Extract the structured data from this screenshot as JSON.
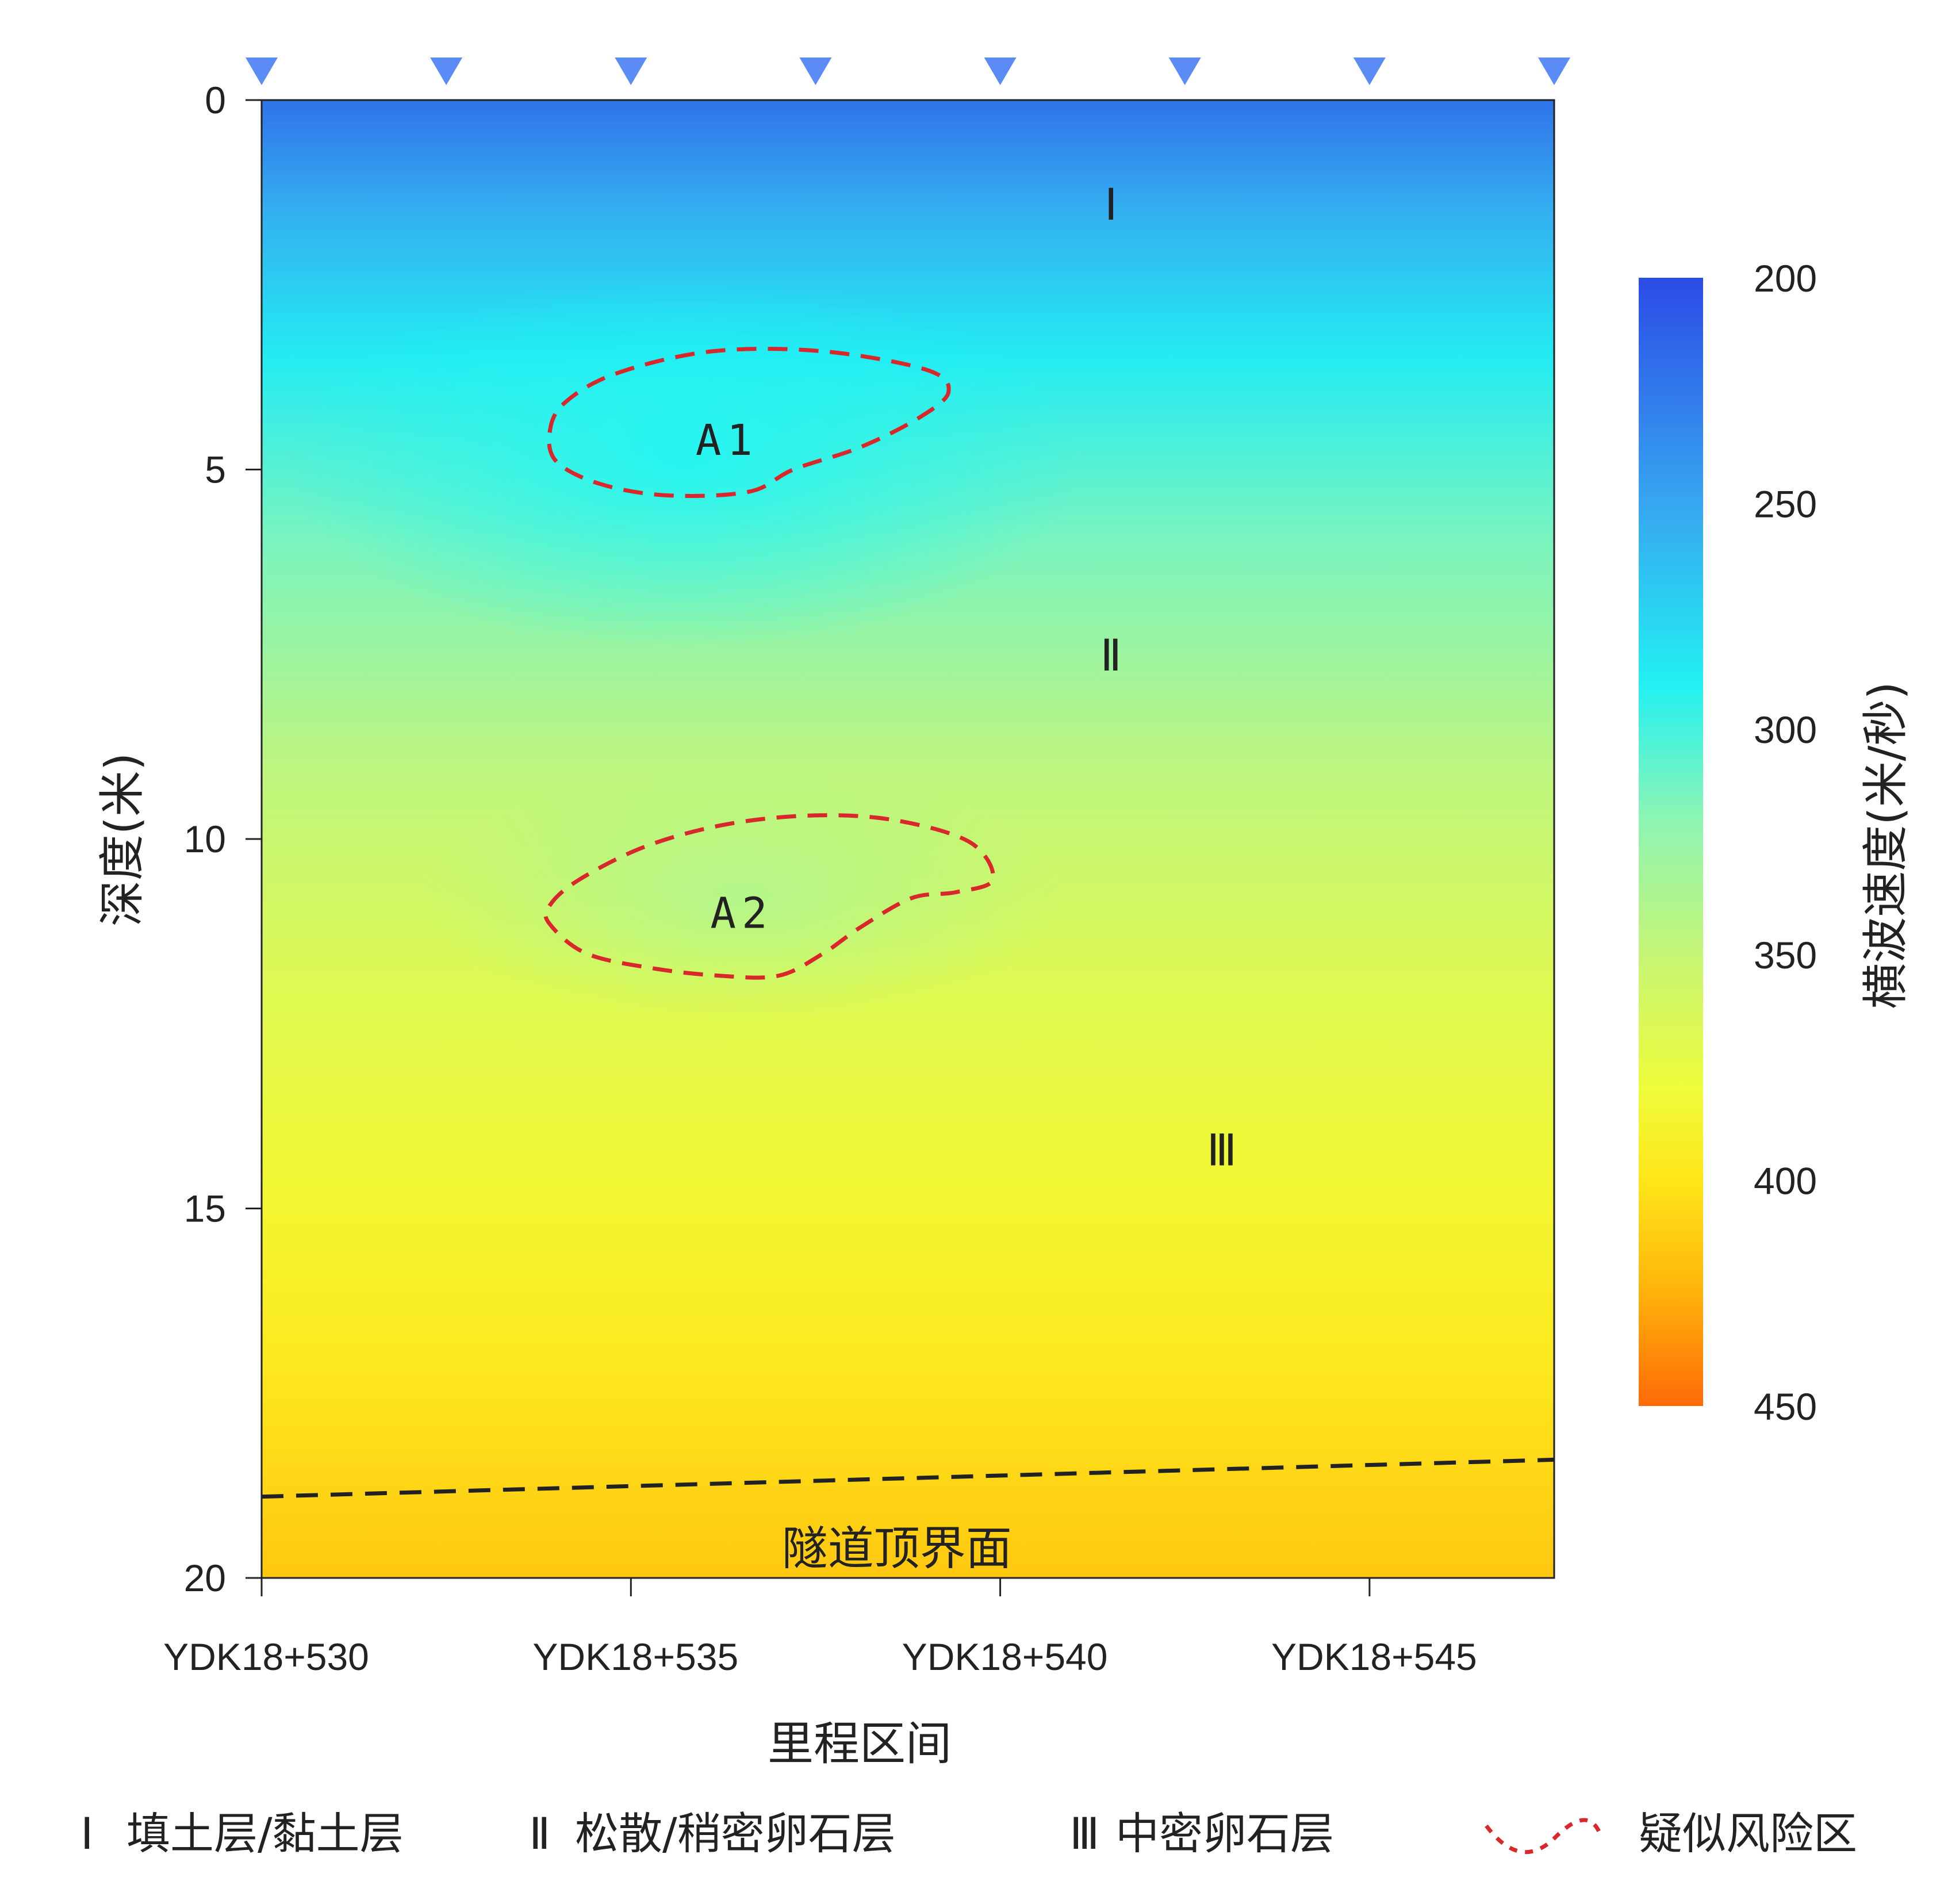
{
  "chart_data": {
    "type": "heatmap",
    "xlabel": "里程区间",
    "ylabel": "深度(米)",
    "colorbar_label": "横波速度(米/秒)",
    "x_tick_labels": [
      "YDK18+530",
      "YDK18+535",
      "YDK18+540",
      "YDK18+545"
    ],
    "x_ticks": [
      530,
      535,
      540,
      545
    ],
    "xlim": [
      530,
      547.5
    ],
    "y_ticks": [
      0,
      5,
      10,
      15,
      20
    ],
    "ylim": [
      0,
      20
    ],
    "y_inverted": true,
    "colorbar_ticks": [
      200,
      250,
      300,
      350,
      400,
      450
    ],
    "colorbar_range": [
      200,
      450
    ],
    "colorscale": [
      [
        200,
        "#2b4be6"
      ],
      [
        250,
        "#37a6f0"
      ],
      [
        290,
        "#22f0f2"
      ],
      [
        320,
        "#8df5b4"
      ],
      [
        350,
        "#c6f575"
      ],
      [
        380,
        "#eefc3a"
      ],
      [
        400,
        "#ffe61a"
      ],
      [
        425,
        "#ffb20a"
      ],
      [
        450,
        "#ff6a08"
      ]
    ],
    "velocity_profile": [
      {
        "depth": 0,
        "velocity": 222
      },
      {
        "depth": 1.5,
        "velocity": 255
      },
      {
        "depth": 3.5,
        "velocity": 288
      },
      {
        "depth": 6,
        "velocity": 315
      },
      {
        "depth": 9,
        "velocity": 345
      },
      {
        "depth": 12,
        "velocity": 368
      },
      {
        "depth": 14.8,
        "velocity": 385
      },
      {
        "depth": 17.2,
        "velocity": 398
      },
      {
        "depth": 20,
        "velocity": 415
      }
    ],
    "receivers_x": [
      530,
      532.5,
      535,
      537.5,
      540,
      542.5,
      545,
      547.5
    ],
    "layers": [
      {
        "label": "Ⅰ",
        "x": 541.5,
        "depth": 1.4
      },
      {
        "label": "Ⅱ",
        "x": 541.5,
        "depth": 7.5
      },
      {
        "label": "Ⅲ",
        "x": 543.0,
        "depth": 14.2
      }
    ],
    "anomalies": [
      {
        "label": "A1",
        "x": 536.3,
        "depth": 4.6,
        "outline": [
          [
            533.9,
            4.5
          ],
          [
            534.1,
            4.1
          ],
          [
            534.8,
            3.7
          ],
          [
            536.1,
            3.4
          ],
          [
            537.6,
            3.4
          ],
          [
            539,
            3.65
          ],
          [
            539.3,
            3.95
          ],
          [
            538.9,
            4.3
          ],
          [
            538.1,
            4.7
          ],
          [
            537.2,
            5.0
          ],
          [
            536.6,
            5.3
          ],
          [
            535.5,
            5.35
          ],
          [
            534.6,
            5.2
          ],
          [
            534,
            4.9
          ],
          [
            533.9,
            4.5
          ]
        ]
      },
      {
        "label": "A2",
        "x": 536.5,
        "depth": 11.0,
        "outline": [
          [
            533.9,
            10.9
          ],
          [
            534.3,
            10.55
          ],
          [
            535.2,
            10.1
          ],
          [
            536.3,
            9.8
          ],
          [
            537.5,
            9.68
          ],
          [
            538.6,
            9.75
          ],
          [
            539.6,
            10.05
          ],
          [
            539.9,
            10.55
          ],
          [
            539.4,
            10.72
          ],
          [
            538.8,
            10.8
          ],
          [
            538.1,
            11.2
          ],
          [
            537.6,
            11.55
          ],
          [
            537,
            11.85
          ],
          [
            536.2,
            11.85
          ],
          [
            535.3,
            11.75
          ],
          [
            534.4,
            11.55
          ],
          [
            533.9,
            11.15
          ],
          [
            533.9,
            10.9
          ]
        ]
      }
    ],
    "tunnel_top_line": {
      "label": "隧道顶界面",
      "x": [
        530,
        547.5
      ],
      "depth": [
        18.9,
        18.4
      ]
    },
    "tunnel_label_pos": {
      "x": 538.6,
      "depth": 19.6
    },
    "legend": [
      {
        "symbol": "Ⅰ",
        "text": "填土层/黏土层"
      },
      {
        "symbol": "Ⅱ",
        "text": "松散/稍密卵石层"
      },
      {
        "symbol": "Ⅲ",
        "text": "中密卵石层"
      },
      {
        "symbol": "dashed-red",
        "text": "疑似风险区"
      }
    ],
    "grid": false
  },
  "colors": {
    "receiver": "#5b8cf5",
    "anomaly_outline": "#d9282b",
    "tunnel_line": "#222222",
    "axis": "#222222"
  }
}
